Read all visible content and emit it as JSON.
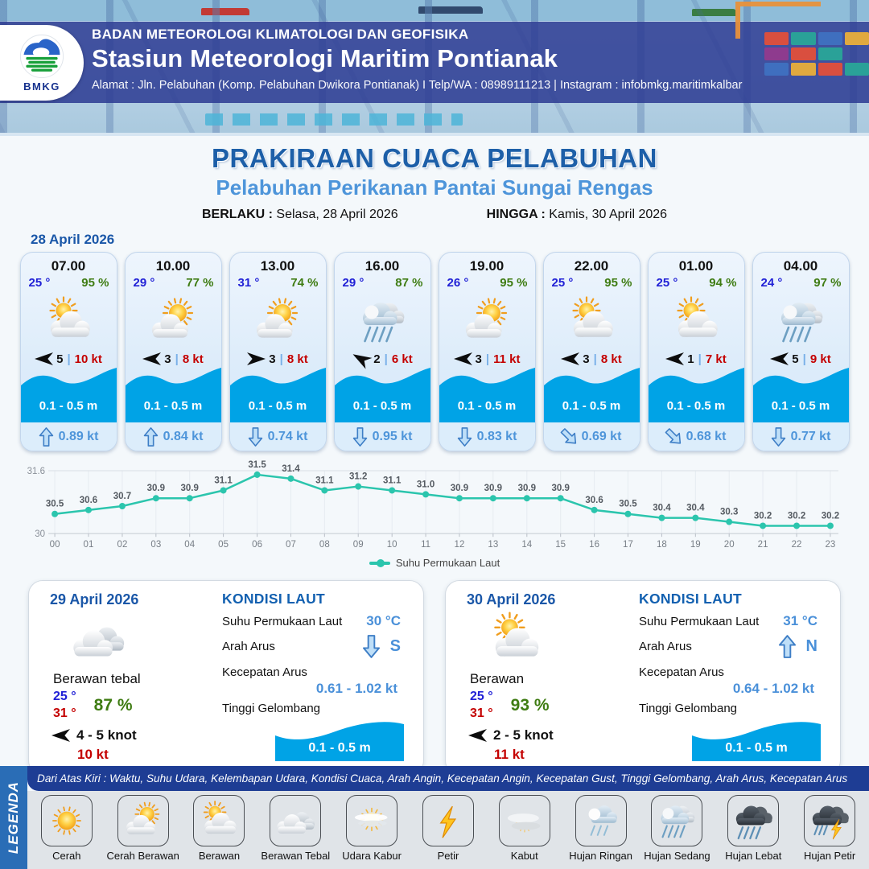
{
  "header": {
    "logo_text": "BMKG",
    "agency": "BADAN METEOROLOGI KLIMATOLOGI DAN GEOFISIKA",
    "station": "Stasiun Meteorologi Maritim Pontianak",
    "address": "Alamat : Jln. Pelabuhan (Komp. Pelabuhan Dwikora Pontianak) I Telp/WA : 08989111213 | Instagram : infobmkg.maritimkalbar"
  },
  "title": {
    "main": "PRAKIRAAN CUACA PELABUHAN",
    "subtitle": "Pelabuhan Perikanan Pantai Sungai Rengas",
    "valid_from_label": "BERLAKU :",
    "valid_from": "Selasa, 28 April 2026",
    "valid_to_label": "HINGGA :",
    "valid_to": "Kamis, 30 April 2026"
  },
  "hourly": {
    "date": "28 April 2026",
    "cards": [
      {
        "time": "07.00",
        "temp": "25 °",
        "humidity": "95 %",
        "icon": "berawan",
        "wind_dir": "left",
        "wind_scale": "5",
        "wind_speed": "10 kt",
        "wave": "0.1 - 0.5 m",
        "current_dir": "up",
        "current": "0.89 kt"
      },
      {
        "time": "10.00",
        "temp": "29 °",
        "humidity": "77 %",
        "icon": "cerah-berawan",
        "wind_dir": "left",
        "wind_scale": "3",
        "wind_speed": "8 kt",
        "wave": "0.1 - 0.5 m",
        "current_dir": "up",
        "current": "0.84 kt"
      },
      {
        "time": "13.00",
        "temp": "31 °",
        "humidity": "74 %",
        "icon": "cerah-berawan",
        "wind_dir": "right",
        "wind_scale": "3",
        "wind_speed": "8 kt",
        "wave": "0.1 - 0.5 m",
        "current_dir": "down",
        "current": "0.74 kt"
      },
      {
        "time": "16.00",
        "temp": "29 °",
        "humidity": "87 %",
        "icon": "hujan-sedang",
        "wind_dir": "up-left",
        "wind_scale": "2",
        "wind_speed": "6 kt",
        "wave": "0.1 - 0.5 m",
        "current_dir": "down",
        "current": "0.95 kt"
      },
      {
        "time": "19.00",
        "temp": "26 °",
        "humidity": "95 %",
        "icon": "cerah-berawan",
        "wind_dir": "left",
        "wind_scale": "3",
        "wind_speed": "11 kt",
        "wave": "0.1 - 0.5 m",
        "current_dir": "down",
        "current": "0.83 kt"
      },
      {
        "time": "22.00",
        "temp": "25 °",
        "humidity": "95 %",
        "icon": "berawan",
        "wind_dir": "left",
        "wind_scale": "3",
        "wind_speed": "8 kt",
        "wave": "0.1 - 0.5 m",
        "current_dir": "down-right",
        "current": "0.69 kt"
      },
      {
        "time": "01.00",
        "temp": "25 °",
        "humidity": "94 %",
        "icon": "berawan",
        "wind_dir": "left",
        "wind_scale": "1",
        "wind_speed": "7 kt",
        "wave": "0.1 - 0.5 m",
        "current_dir": "down-right",
        "current": "0.68 kt"
      },
      {
        "time": "04.00",
        "temp": "24 °",
        "humidity": "97 %",
        "icon": "hujan-sedang",
        "wind_dir": "left",
        "wind_scale": "5",
        "wind_speed": "9 kt",
        "wave": "0.1 - 0.5 m",
        "current_dir": "down",
        "current": "0.77 kt"
      }
    ]
  },
  "chart_data": {
    "type": "line",
    "x": [
      "00",
      "01",
      "02",
      "03",
      "04",
      "05",
      "06",
      "07",
      "08",
      "09",
      "10",
      "11",
      "12",
      "13",
      "14",
      "15",
      "16",
      "17",
      "18",
      "19",
      "20",
      "21",
      "22",
      "23"
    ],
    "series": [
      {
        "name": "Suhu Permukaan Laut",
        "values": [
          30.5,
          30.6,
          30.7,
          30.9,
          30.9,
          31.1,
          31.5,
          31.4,
          31.1,
          31.2,
          31.1,
          31.0,
          30.9,
          30.9,
          30.9,
          30.9,
          30.6,
          30.5,
          30.4,
          30.4,
          30.3,
          30.2,
          30.2,
          30.2
        ]
      }
    ],
    "ylim": [
      30,
      31.6
    ],
    "y_tick_labels": [
      "30",
      "31.6"
    ],
    "line_color": "#2bc5ad",
    "grid": true,
    "legend_position": "bottom"
  },
  "daily": [
    {
      "date": "29 April 2026",
      "icon": "berawan-tebal",
      "condition": "Berawan tebal",
      "temp_min": "25 °",
      "temp_max": "31 °",
      "humidity": "87 %",
      "wind_dir": "left",
      "wind": "4 - 5 knot",
      "gust": "10 kt",
      "sea": {
        "heading": "KONDISI LAUT",
        "sst_label": "Suhu Permukaan Laut",
        "sst": "30 °C",
        "current_dir_label": "Arah Arus",
        "current_dir": "S",
        "current_dir_arrow": "down",
        "current_speed_label": "Kecepatan Arus",
        "current_speed": "0.61 - 1.02 kt",
        "wave_label": "Tinggi Gelombang",
        "wave": "0.1 - 0.5 m"
      }
    },
    {
      "date": "30 April 2026",
      "icon": "berawan",
      "condition": "Berawan",
      "temp_min": "25 °",
      "temp_max": "31 °",
      "humidity": "93 %",
      "wind_dir": "left",
      "wind": "2 - 5 knot",
      "gust": "11 kt",
      "sea": {
        "heading": "KONDISI LAUT",
        "sst_label": "Suhu Permukaan Laut",
        "sst": "31 °C",
        "current_dir_label": "Arah Arus",
        "current_dir": "N",
        "current_dir_arrow": "up",
        "current_speed_label": "Kecepatan Arus",
        "current_speed": "0.64 - 1.02 kt",
        "wave_label": "Tinggi Gelombang",
        "wave": "0.1 - 0.5 m"
      }
    }
  ],
  "legend": {
    "ribbon": "LEGENDA",
    "note": "Dari Atas Kiri : Waktu, Suhu Udara, Kelembapan Udara, Kondisi Cuaca, Arah Angin, Kecepatan Angin, Kecepatan Gust, Tinggi Gelombang, Arah Arus, Kecepatan Arus",
    "items": [
      {
        "label": "Cerah",
        "icon": "cerah"
      },
      {
        "label": "Cerah Berawan",
        "icon": "cerah-berawan"
      },
      {
        "label": "Berawan",
        "icon": "berawan"
      },
      {
        "label": "Berawan Tebal",
        "icon": "berawan-tebal"
      },
      {
        "label": "Udara Kabur",
        "icon": "udara-kabur"
      },
      {
        "label": "Petir",
        "icon": "petir"
      },
      {
        "label": "Kabut",
        "icon": "kabut"
      },
      {
        "label": "Hujan Ringan",
        "icon": "hujan-ringan"
      },
      {
        "label": "Hujan Sedang",
        "icon": "hujan-sedang"
      },
      {
        "label": "Hujan Lebat",
        "icon": "hujan-lebat"
      },
      {
        "label": "Hujan Petir",
        "icon": "hujan-petir"
      }
    ]
  },
  "colors": {
    "accent_dark_blue": "#1d5fa8",
    "accent_blue": "#4a90d9",
    "wave_blue": "#00a3e6",
    "temp_blue": "#2121d6",
    "humidity_green": "#3f7c13",
    "speed_red": "#c40000",
    "chart_teal": "#2bc5ad"
  }
}
